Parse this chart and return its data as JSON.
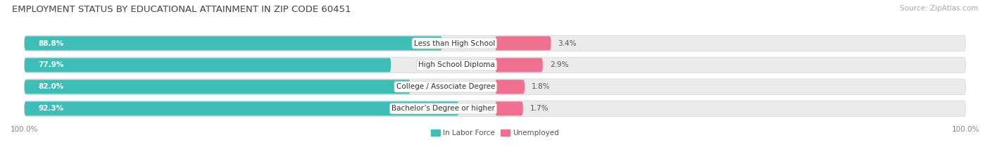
{
  "title": "EMPLOYMENT STATUS BY EDUCATIONAL ATTAINMENT IN ZIP CODE 60451",
  "source": "Source: ZipAtlas.com",
  "categories": [
    "Less than High School",
    "High School Diploma",
    "College / Associate Degree",
    "Bachelor’s Degree or higher"
  ],
  "labor_force": [
    88.8,
    77.9,
    82.0,
    92.3
  ],
  "unemployed": [
    3.4,
    2.9,
    1.8,
    1.7
  ],
  "labor_color": "#3DBFB8",
  "unemployed_color": "#F07090",
  "bar_bg_color": "#E8E8E8",
  "bar_bg_color2": "#F5F5F5",
  "title_fontsize": 9.5,
  "source_fontsize": 7.5,
  "label_fontsize": 7.5,
  "tick_fontsize": 7.5,
  "legend_fontsize": 7.5,
  "max_pct": 100.0
}
